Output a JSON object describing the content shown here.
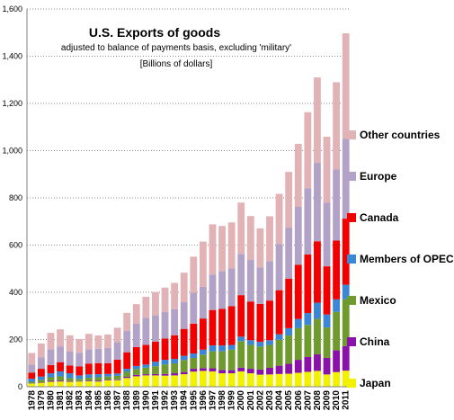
{
  "chart_data": {
    "type": "bar",
    "stacked": true,
    "title": "U.S. Exports of goods",
    "subtitle": "adjusted to balance of payments basis, excluding 'military'",
    "unit_note": "[Billions of dollars]",
    "ylim": [
      0,
      1600
    ],
    "yticks": [
      "0",
      "200",
      "400",
      "600",
      "800",
      "1,000",
      "1,200",
      "1,400",
      "1,600"
    ],
    "ytick_values": [
      0,
      200,
      400,
      600,
      800,
      1000,
      1200,
      1400,
      1600
    ],
    "grid": "horizontal dotted",
    "legend_position": "right",
    "categories": [
      "1978",
      "1979",
      "1980",
      "1981",
      "1982",
      "1983",
      "1984",
      "1985",
      "1986",
      "1987",
      "1988",
      "1989",
      "1990",
      "1991",
      "1992",
      "1993",
      "1994",
      "1995",
      "1996",
      "1997",
      "1998",
      "1999",
      "2000",
      "2001",
      "2002",
      "2003",
      "2004",
      "2005",
      "2006",
      "2007",
      "2008",
      "2009",
      "2010",
      "2011"
    ],
    "series": [
      {
        "name": "Japan",
        "color": "#f2f200",
        "values": [
          13,
          17,
          21,
          22,
          21,
          22,
          23,
          22,
          27,
          28,
          37,
          44,
          48,
          48,
          47,
          48,
          53,
          64,
          67,
          65,
          57,
          57,
          65,
          57,
          51,
          52,
          54,
          55,
          59,
          63,
          67,
          52,
          62,
          68
        ]
      },
      {
        "name": "China",
        "color": "#8b12a8",
        "values": [
          1,
          2,
          4,
          4,
          3,
          2,
          3,
          4,
          3,
          3,
          5,
          6,
          5,
          6,
          7,
          9,
          9,
          12,
          12,
          13,
          14,
          13,
          16,
          19,
          22,
          28,
          35,
          42,
          55,
          63,
          70,
          70,
          92,
          104
        ]
      },
      {
        "name": "Mexico",
        "color": "#6f9a2e",
        "values": [
          7,
          10,
          15,
          18,
          12,
          9,
          12,
          14,
          13,
          15,
          21,
          25,
          28,
          33,
          40,
          42,
          51,
          46,
          57,
          72,
          79,
          87,
          112,
          101,
          97,
          97,
          110,
          120,
          134,
          136,
          151,
          129,
          163,
          198
        ]
      },
      {
        "name": "Members of OPEC",
        "color": "#3c86d6",
        "values": [
          13,
          14,
          17,
          21,
          21,
          15,
          14,
          13,
          11,
          10,
          13,
          13,
          13,
          19,
          20,
          19,
          18,
          19,
          21,
          25,
          25,
          20,
          19,
          20,
          20,
          20,
          23,
          31,
          39,
          50,
          68,
          55,
          53,
          62
        ]
      },
      {
        "name": "Canada",
        "color": "#f20000",
        "values": [
          26,
          33,
          35,
          39,
          33,
          38,
          46,
          47,
          45,
          59,
          70,
          80,
          83,
          85,
          90,
          100,
          114,
          126,
          132,
          150,
          155,
          164,
          176,
          164,
          161,
          168,
          187,
          210,
          230,
          248,
          260,
          204,
          249,
          280
        ]
      },
      {
        "name": "Europe",
        "color": "#b3a2c7",
        "values": [
          34,
          48,
          67,
          67,
          60,
          58,
          61,
          61,
          65,
          74,
          90,
          100,
          115,
          110,
          112,
          110,
          113,
          131,
          134,
          150,
          159,
          160,
          174,
          176,
          155,
          167,
          195,
          216,
          245,
          281,
          333,
          269,
          301,
          339
        ]
      },
      {
        "name": "Other countries",
        "color": "#e2b3b6",
        "values": [
          49,
          59,
          69,
          72,
          68,
          58,
          65,
          56,
          57,
          61,
          77,
          82,
          89,
          100,
          104,
          112,
          125,
          153,
          192,
          213,
          192,
          195,
          218,
          186,
          165,
          190,
          213,
          236,
          267,
          322,
          361,
          280,
          370,
          446
        ]
      }
    ]
  }
}
